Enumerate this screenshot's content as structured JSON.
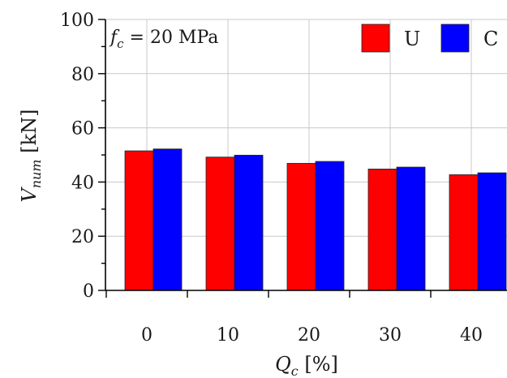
{
  "chart_data": {
    "type": "bar",
    "categories": [
      "0",
      "10",
      "20",
      "30",
      "40"
    ],
    "series": [
      {
        "name": "U",
        "color": "#ff0000",
        "values": [
          51.5,
          49.2,
          46.9,
          44.8,
          42.7
        ]
      },
      {
        "name": "C",
        "color": "#0000ff",
        "values": [
          52.2,
          49.9,
          47.6,
          45.5,
          43.4
        ]
      }
    ],
    "ylim": [
      0,
      100
    ],
    "yticks": [
      0,
      20,
      40,
      60,
      80,
      100
    ],
    "ylabel": {
      "main": "V",
      "sub": "num",
      "unit": " [kN]"
    },
    "xlabel": {
      "main": "Q",
      "sub": "c",
      "unit": " [%]"
    },
    "annotation": {
      "main": "f",
      "sub": "c",
      "text": " = 20 MPa"
    },
    "grid": true,
    "legend_position": "top-right"
  }
}
